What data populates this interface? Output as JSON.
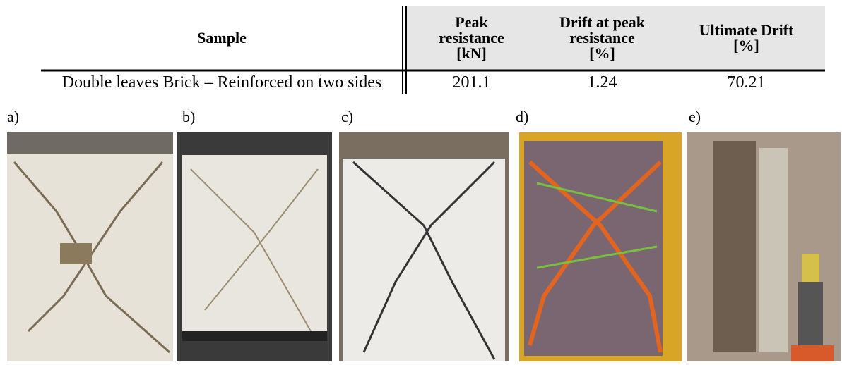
{
  "table": {
    "header": [
      "Sample",
      [
        "Peak",
        "resistance",
        "[kN]"
      ],
      [
        "Drift at peak",
        "resistance",
        "[%]"
      ],
      [
        "Ultimate Drift",
        "[%]"
      ]
    ],
    "rows": [
      [
        "Double leaves Brick – Reinforced on two sides",
        "201.1",
        "1.24",
        "70.21"
      ]
    ]
  },
  "figure": {
    "panels": [
      "a)",
      "b)",
      "c)",
      "d)",
      "e)"
    ]
  }
}
